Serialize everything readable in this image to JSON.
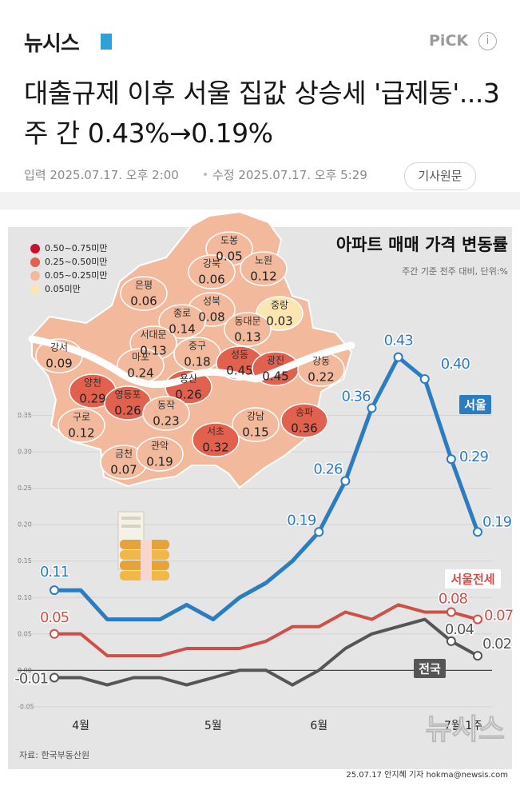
{
  "header": {
    "logo": "뉴시스",
    "badge": "PiCK",
    "info": "i"
  },
  "article": {
    "title": "대출규제 이후 서울 집값 상승세 '급제동'...3주 간 0.43%→0.19%",
    "published": "입력 2025.07.17. 오후 2:00",
    "modified": "수정 2025.07.17. 오후 5:29",
    "original_button": "기사원문"
  },
  "map": {
    "legend": [
      {
        "label": "0.50~0.75미만",
        "color": "#c8102e"
      },
      {
        "label": "0.25~0.50미만",
        "color": "#e2604e"
      },
      {
        "label": "0.05~0.25미만",
        "color": "#f2b99c"
      },
      {
        "label": "0.05미만",
        "color": "#fbe6b2"
      }
    ],
    "districts": [
      {
        "name": "도봉",
        "value": 0.05,
        "color": "#f2b99c"
      },
      {
        "name": "노원",
        "value": 0.12,
        "color": "#f2b99c"
      },
      {
        "name": "강북",
        "value": 0.06,
        "color": "#f2b99c"
      },
      {
        "name": "은평",
        "value": 0.06,
        "color": "#f2b99c"
      },
      {
        "name": "성북",
        "value": 0.08,
        "color": "#f2b99c"
      },
      {
        "name": "종로",
        "value": 0.14,
        "color": "#f2b99c"
      },
      {
        "name": "중랑",
        "value": 0.03,
        "color": "#fbe6b2"
      },
      {
        "name": "동대문",
        "value": 0.13,
        "color": "#f2b99c"
      },
      {
        "name": "서대문",
        "value": 0.13,
        "color": "#f2b99c"
      },
      {
        "name": "중구",
        "value": 0.18,
        "color": "#f2b99c"
      },
      {
        "name": "성동",
        "value": 0.45,
        "color": "#e2604e"
      },
      {
        "name": "광진",
        "value": 0.45,
        "color": "#e2604e"
      },
      {
        "name": "강서",
        "value": 0.09,
        "color": "#f2b99c"
      },
      {
        "name": "마포",
        "value": 0.24,
        "color": "#f2b99c"
      },
      {
        "name": "용산",
        "value": 0.26,
        "color": "#e2604e"
      },
      {
        "name": "강동",
        "value": 0.22,
        "color": "#f2b99c"
      },
      {
        "name": "양천",
        "value": 0.29,
        "color": "#e2604e"
      },
      {
        "name": "영등포",
        "value": 0.26,
        "color": "#e2604e"
      },
      {
        "name": "동작",
        "value": 0.23,
        "color": "#f2b99c"
      },
      {
        "name": "구로",
        "value": 0.12,
        "color": "#f2b99c"
      },
      {
        "name": "강남",
        "value": 0.15,
        "color": "#f2b99c"
      },
      {
        "name": "송파",
        "value": 0.36,
        "color": "#e2604e"
      },
      {
        "name": "서초",
        "value": 0.32,
        "color": "#e2604e"
      },
      {
        "name": "금천",
        "value": 0.07,
        "color": "#f2b99c"
      },
      {
        "name": "관악",
        "value": 0.19,
        "color": "#f2b99c"
      }
    ]
  },
  "chart_data": {
    "type": "line",
    "title": "아파트 매매 가격 변동률",
    "subtitle": "주간 기준 전주 대비, 단위:%",
    "source": "자료: 한국부동산원",
    "categories": [
      null,
      "4월",
      null,
      null,
      null,
      null,
      "5월",
      null,
      null,
      null,
      "6월",
      null,
      null,
      null,
      null,
      null,
      "7월 1주"
    ],
    "series": [
      {
        "name": "서울",
        "color": "#2b7cc1",
        "values": [
          0.11,
          0.11,
          0.07,
          0.07,
          0.07,
          0.09,
          0.07,
          0.1,
          0.12,
          0.15,
          0.19,
          0.26,
          0.36,
          0.43,
          0.4,
          0.29,
          0.19
        ],
        "value_labels": [
          "0.11",
          null,
          null,
          null,
          null,
          null,
          null,
          null,
          null,
          null,
          "0.19",
          "0.26",
          "0.36",
          "0.43",
          "0.40",
          "0.29",
          "0.19"
        ]
      },
      {
        "name": "서울전세",
        "color": "#cf4f48",
        "values": [
          0.05,
          0.05,
          0.02,
          0.02,
          0.02,
          0.03,
          0.03,
          0.03,
          0.04,
          0.06,
          0.06,
          0.08,
          0.07,
          0.09,
          0.08,
          0.08,
          0.07
        ],
        "value_labels": [
          "0.05",
          null,
          null,
          null,
          null,
          null,
          null,
          null,
          null,
          null,
          null,
          null,
          null,
          null,
          null,
          "0.08",
          "0.07"
        ]
      },
      {
        "name": "전국",
        "color": "#555555",
        "values": [
          -0.01,
          -0.01,
          -0.02,
          -0.01,
          -0.01,
          -0.02,
          -0.01,
          0.0,
          0.0,
          -0.02,
          0.0,
          0.03,
          0.05,
          0.06,
          0.07,
          0.04,
          0.02
        ],
        "value_labels": [
          "-0.01",
          null,
          null,
          null,
          null,
          null,
          null,
          null,
          null,
          null,
          null,
          null,
          null,
          null,
          null,
          "0.04",
          "0.02"
        ]
      }
    ],
    "ylim": [
      -0.06,
      0.4
    ],
    "yticks": [
      {
        "value": -0.05,
        "label": "-0.05"
      },
      {
        "value": 0,
        "label": "0.00"
      },
      {
        "value": 0.05,
        "label": "0.05"
      },
      {
        "value": 0.1,
        "label": "0.10"
      },
      {
        "value": 0.15,
        "label": "0.15"
      },
      {
        "value": 0.2,
        "label": "0.20"
      },
      {
        "value": 0.25,
        "label": "0.25"
      },
      {
        "value": 0.3,
        "label": "0.30"
      },
      {
        "value": 0.35,
        "label": "0.35"
      }
    ],
    "grid": true
  },
  "footer": {
    "credit": "25.07.17 안지혜 기자 hokma@newsis.com",
    "watermark": "뉴시스"
  }
}
